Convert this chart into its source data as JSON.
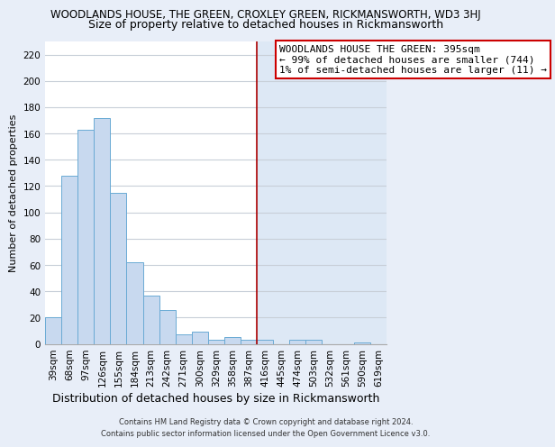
{
  "title": "WOODLANDS HOUSE, THE GREEN, CROXLEY GREEN, RICKMANSWORTH, WD3 3HJ",
  "subtitle": "Size of property relative to detached houses in Rickmansworth",
  "xlabel": "Distribution of detached houses by size in Rickmansworth",
  "ylabel": "Number of detached properties",
  "bar_labels": [
    "39sqm",
    "68sqm",
    "97sqm",
    "126sqm",
    "155sqm",
    "184sqm",
    "213sqm",
    "242sqm",
    "271sqm",
    "300sqm",
    "329sqm",
    "358sqm",
    "387sqm",
    "416sqm",
    "445sqm",
    "474sqm",
    "503sqm",
    "532sqm",
    "561sqm",
    "590sqm",
    "619sqm"
  ],
  "bar_values": [
    20,
    128,
    163,
    172,
    115,
    62,
    37,
    26,
    7,
    9,
    3,
    5,
    3,
    3,
    0,
    3,
    3,
    0,
    0,
    1,
    0
  ],
  "bar_color": "#c8d9ef",
  "bar_edge_color": "#6aaad4",
  "ylim": [
    0,
    230
  ],
  "yticks": [
    0,
    20,
    40,
    60,
    80,
    100,
    120,
    140,
    160,
    180,
    200,
    220
  ],
  "vline_color": "#aa0000",
  "annotation_title": "WOODLANDS HOUSE THE GREEN: 395sqm",
  "annotation_line1": "← 99% of detached houses are smaller (744)",
  "annotation_line2": "1% of semi-detached houses are larger (11) →",
  "footer1": "Contains HM Land Registry data © Crown copyright and database right 2024.",
  "footer2": "Contains public sector information licensed under the Open Government Licence v3.0.",
  "bg_color": "#e8eef8",
  "plot_bg_left": "#ffffff",
  "plot_bg_right": "#dde8f5",
  "grid_color": "#c8cfd8",
  "title_fontsize": 8.5,
  "subtitle_fontsize": 9,
  "xlabel_fontsize": 9,
  "ylabel_fontsize": 8,
  "tick_fontsize": 7.5,
  "annot_fontsize": 8
}
